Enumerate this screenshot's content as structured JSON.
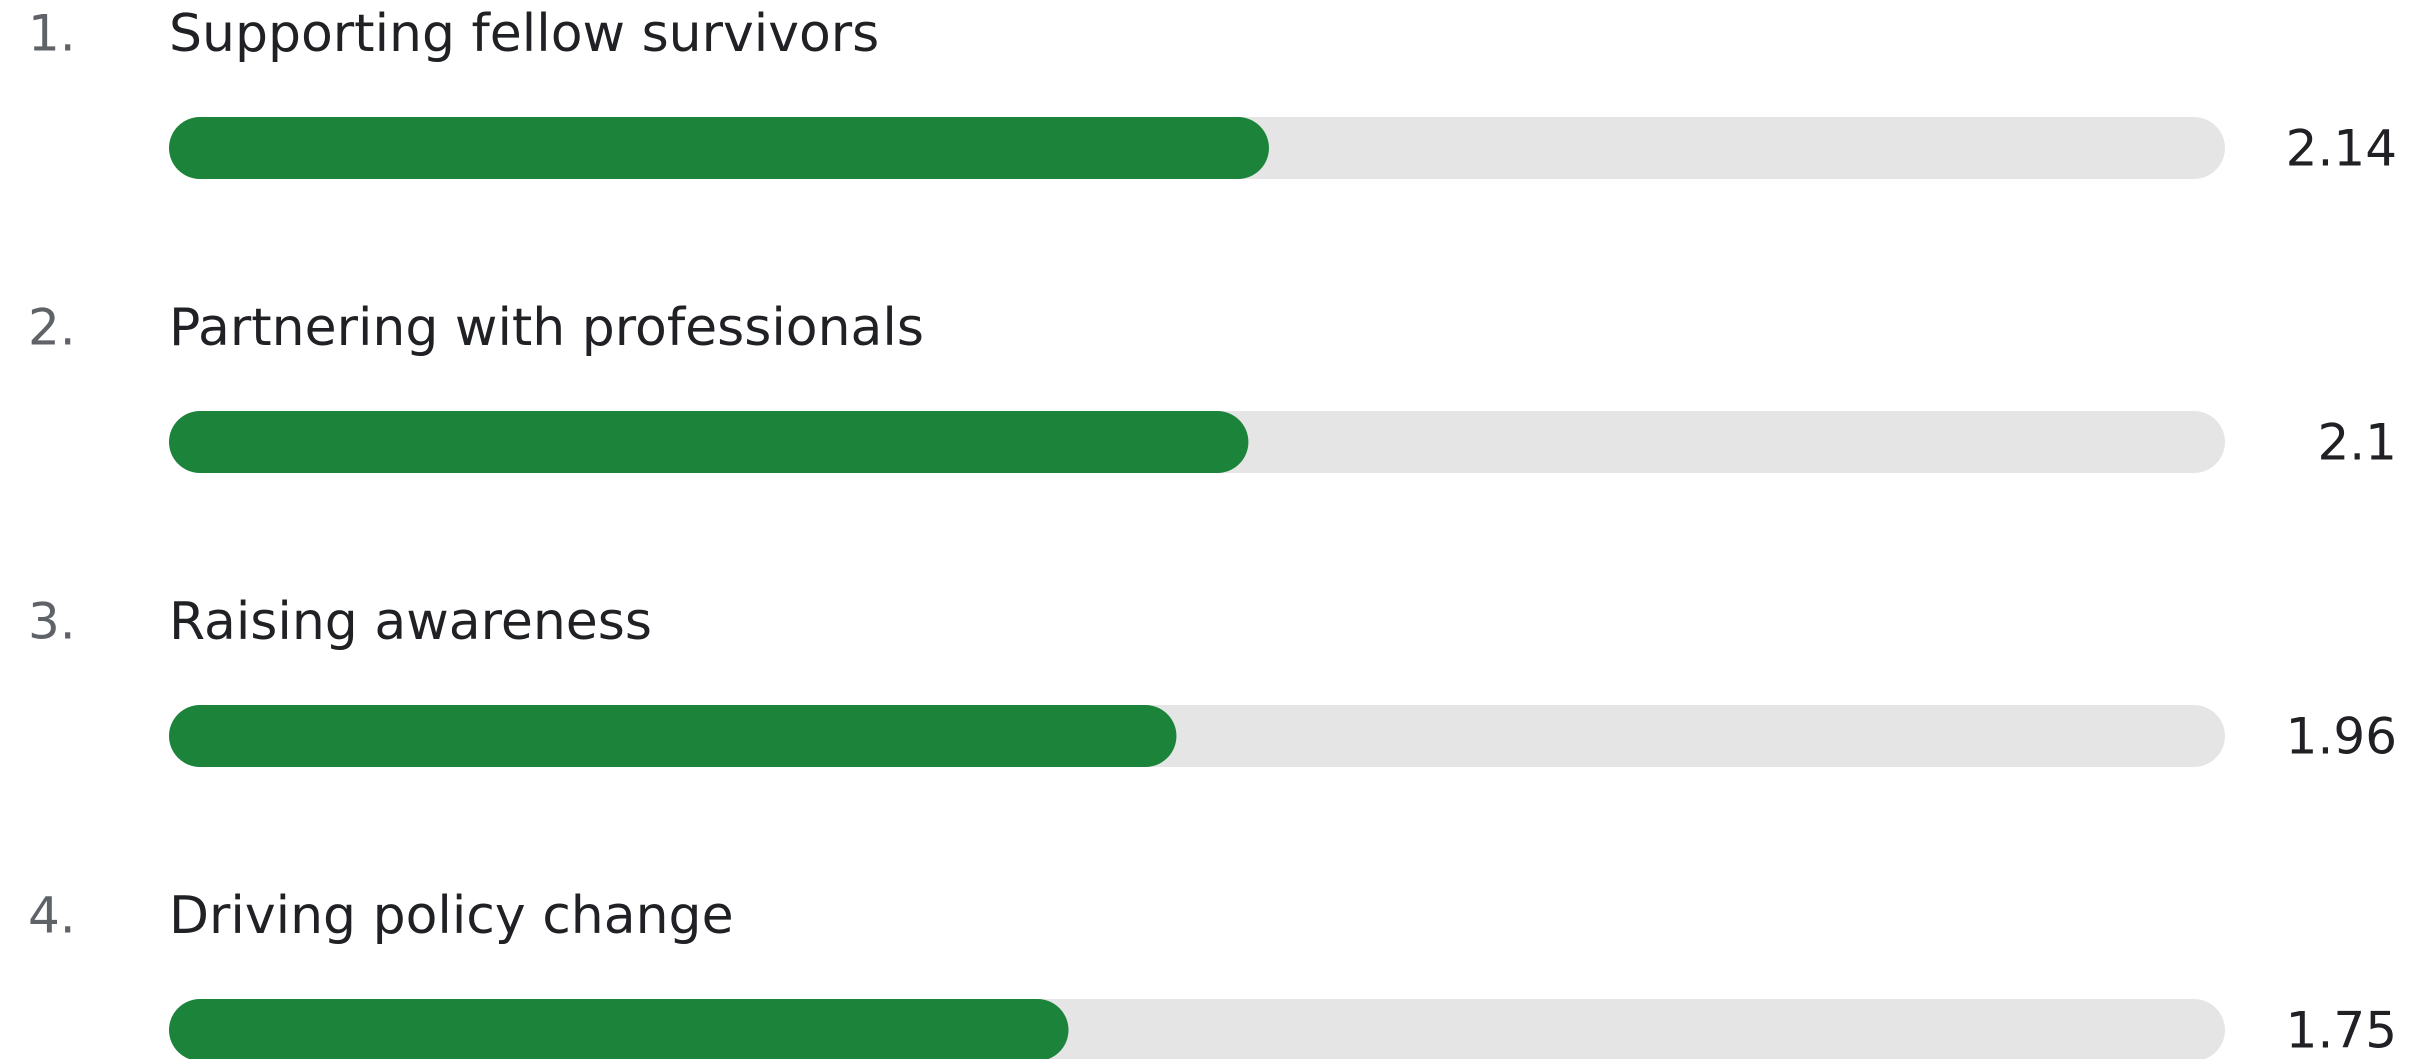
{
  "chart_data": {
    "type": "bar",
    "orientation": "horizontal",
    "ranks": [
      "1.",
      "2.",
      "3.",
      "4."
    ],
    "categories": [
      "Supporting fellow survivors",
      "Partnering with professionals",
      "Raising awareness",
      "Driving policy change"
    ],
    "values": [
      2.14,
      2.1,
      1.96,
      1.75
    ],
    "color": "#1b843a",
    "track_color": "#e5e5e5",
    "xlim": [
      0,
      4
    ]
  }
}
